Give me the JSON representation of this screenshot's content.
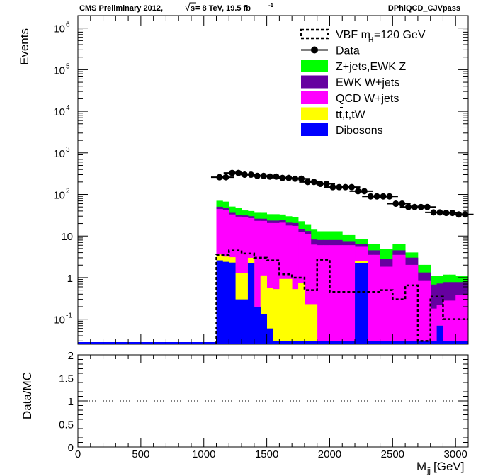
{
  "header": {
    "left_prefix": "CMS Preliminary 2012,",
    "sqrt_s": "s",
    "energy_lumi": " = 8 TeV, 19.5 fb",
    "lumi_exp": "-1",
    "right": "DPhiQCD_CJVpass"
  },
  "colors": {
    "zjets": "#00ff00",
    "ewkw": "#6600a0",
    "qcdw": "#ff00ff",
    "top": "#ffff00",
    "diboson": "#0000ff",
    "data": "#000000",
    "vbf": "#000000",
    "ratio_grid": "#000000"
  },
  "chart_data": [
    {
      "type": "bar",
      "name": "main",
      "stacked": true,
      "log_y": true,
      "ylim": [
        0.025,
        2000000
      ],
      "xlim": [
        0,
        3100
      ],
      "ylabel": "Events",
      "y_ticks": [
        {
          "value": 0.1,
          "base": "10",
          "exp": "-1"
        },
        {
          "value": 1,
          "base": "1",
          "exp": ""
        },
        {
          "value": 10,
          "base": "10",
          "exp": ""
        },
        {
          "value": 100,
          "base": "10",
          "exp": "2"
        },
        {
          "value": 1000,
          "base": "10",
          "exp": "3"
        },
        {
          "value": 10000,
          "base": "10",
          "exp": "4"
        },
        {
          "value": 100000,
          "base": "10",
          "exp": "5"
        },
        {
          "value": 1000000,
          "base": "10",
          "exp": "6"
        }
      ],
      "bin_edges": [
        1100,
        1150,
        1200,
        1250,
        1300,
        1350,
        1400,
        1450,
        1500,
        1550,
        1600,
        1650,
        1700,
        1750,
        1800,
        1850,
        1900,
        1950,
        2000,
        2050,
        2100,
        2150,
        2200,
        2250,
        2300,
        2350,
        2400,
        2450,
        2500,
        2550,
        2600,
        2650,
        2700,
        2750,
        2800,
        2850,
        2900,
        2950,
        3000,
        3050,
        3100
      ],
      "stack_order": [
        "diboson",
        "top",
        "qcdw",
        "ewkw",
        "zjets"
      ],
      "series": [
        {
          "key": "diboson",
          "name": "Dibosons",
          "color": "#0000ff",
          "values": [
            2.6,
            2.4,
            2.3,
            0.3,
            0.3,
            2.2,
            0.2,
            0.13,
            0.06,
            0.03,
            0.03,
            0.03,
            0.03,
            0.03,
            0.03,
            0.03,
            0.03,
            0.03,
            0.03,
            0.03,
            0.03,
            0.03,
            2.2,
            2.2,
            0.03,
            0.03,
            0.03,
            0.03,
            0.03,
            0.03,
            0.03,
            0.03,
            0.03,
            0.03,
            0.03,
            0.07,
            0.03,
            0.03,
            0.03,
            0.03
          ]
        },
        {
          "key": "top",
          "name": "tt̄,t,tW",
          "color": "#ffff00",
          "values": [
            1.0,
            0.8,
            0.8,
            1.0,
            1.0,
            0.8,
            0.0,
            1.0,
            0.5,
            0.5,
            0.9,
            0.9,
            0.5,
            0.7,
            0.2,
            0.2,
            0.0,
            0.0,
            0.0,
            0.0,
            0.0,
            0.0,
            0.3,
            0.3,
            0.0,
            0.0,
            0.0,
            0.0,
            0.0,
            0.0,
            0.0,
            0.0,
            0.0,
            0.0,
            0.0,
            0.0,
            0.0,
            0.0,
            0.0,
            0.0
          ]
        },
        {
          "key": "qcdw",
          "name": "QCD W+jets",
          "color": "#ff00ff",
          "values": [
            41,
            39,
            30,
            28,
            27,
            24,
            23,
            22,
            20,
            20,
            20,
            17,
            17,
            12,
            11,
            6,
            6,
            6,
            6,
            6,
            6,
            6,
            3,
            3,
            3.5,
            3.5,
            1.8,
            1.8,
            3.5,
            3.5,
            2,
            2,
            0.8,
            0.8,
            0.15,
            0.15,
            0.25,
            0.25,
            0.35,
            0.35
          ]
        },
        {
          "key": "ewkw",
          "name": "EWK W+jets",
          "color": "#6600a0",
          "values": [
            6,
            5,
            3,
            3,
            3,
            3,
            3,
            3,
            3,
            3,
            3,
            3,
            3,
            2,
            2,
            2,
            2,
            2,
            2,
            2,
            1.5,
            1.5,
            1,
            1,
            1,
            1,
            1,
            1,
            1,
            1,
            1,
            1,
            0.5,
            0.5,
            0.5,
            0.5,
            0.5,
            0.5,
            0.4,
            0.4
          ]
        },
        {
          "key": "zjets",
          "name": "Z+jets,EWK Z",
          "color": "#00ff00",
          "values": [
            20,
            20,
            15,
            15,
            10,
            10,
            10,
            10,
            10,
            10,
            9,
            9,
            8,
            8,
            6,
            6,
            5,
            5,
            5,
            5,
            3,
            3,
            2,
            2,
            2,
            2,
            2,
            2,
            2,
            2,
            1,
            1,
            0.7,
            0.7,
            0.4,
            0.4,
            0.4,
            0.4,
            0.3,
            0.3
          ]
        }
      ],
      "data_points": {
        "name": "Data",
        "x": [
          1125,
          1175,
          1225,
          1275,
          1325,
          1375,
          1425,
          1475,
          1525,
          1575,
          1625,
          1675,
          1725,
          1775,
          1825,
          1875,
          1925,
          1975,
          2025,
          2075,
          2125,
          2175,
          2225,
          2275,
          2325,
          2375,
          2425,
          2475,
          2525,
          2575,
          2625,
          2675,
          2725,
          2775,
          2825,
          2875,
          2925,
          2975,
          3025,
          3075
        ],
        "y": [
          260,
          260,
          330,
          330,
          300,
          300,
          280,
          280,
          270,
          270,
          250,
          250,
          240,
          240,
          200,
          200,
          180,
          180,
          150,
          150,
          150,
          150,
          120,
          120,
          90,
          90,
          90,
          90,
          60,
          60,
          50,
          50,
          50,
          50,
          37,
          37,
          36,
          36,
          33,
          33
        ]
      },
      "vbf_signal": {
        "name": "VBF m_H=120 GeV",
        "values": [
          3.5,
          3.5,
          4.5,
          4.5,
          3.8,
          3.8,
          3.0,
          3.0,
          2.6,
          2.6,
          1.2,
          1.2,
          1.0,
          1.0,
          0.5,
          0.5,
          2.7,
          2.7,
          0.45,
          0.45,
          0.45,
          0.45,
          0.45,
          0.45,
          0.45,
          0.45,
          0.5,
          0.5,
          0.3,
          0.3,
          0.65,
          0.65,
          0.03,
          0.03,
          0.35,
          0.35,
          0.1,
          0.1,
          0.1,
          0.1
        ]
      },
      "legend": {
        "placement": "top-right",
        "entries": [
          {
            "key": "vbf",
            "label_main": "VBF m",
            "label_sub": "H",
            "label_tail": "=120 GeV",
            "style": "dashed-box"
          },
          {
            "key": "data",
            "label": "Data",
            "style": "marker"
          },
          {
            "key": "zjets",
            "label": "Z+jets,EWK Z",
            "style": "fill"
          },
          {
            "key": "ewkw",
            "label": "EWK W+jets",
            "style": "fill"
          },
          {
            "key": "qcdw",
            "label": "QCD W+jets",
            "style": "fill"
          },
          {
            "key": "top",
            "label": "tt,t,tW",
            "style": "fill"
          },
          {
            "key": "diboson",
            "label": "Dibosons",
            "style": "fill"
          }
        ]
      }
    },
    {
      "type": "line",
      "name": "ratio",
      "ylabel": "Data/MC",
      "xlabel_main": "M",
      "xlabel_sub": "jj",
      "xlabel_tail": " [GeV]",
      "xlim": [
        0,
        3100
      ],
      "ylim": [
        0,
        2
      ],
      "x_ticks": [
        "0",
        "500",
        "1000",
        "1500",
        "2000",
        "2500",
        "3000"
      ],
      "x_tick_values": [
        0,
        500,
        1000,
        1500,
        2000,
        2500,
        3000
      ],
      "y_ticks": [
        "0",
        "0.5",
        "1",
        "1.5",
        "2"
      ],
      "y_tick_values": [
        0,
        0.5,
        1,
        1.5,
        2
      ],
      "grid_lines": [
        0.5,
        1,
        1.5,
        2
      ],
      "grid": "dotted"
    }
  ]
}
